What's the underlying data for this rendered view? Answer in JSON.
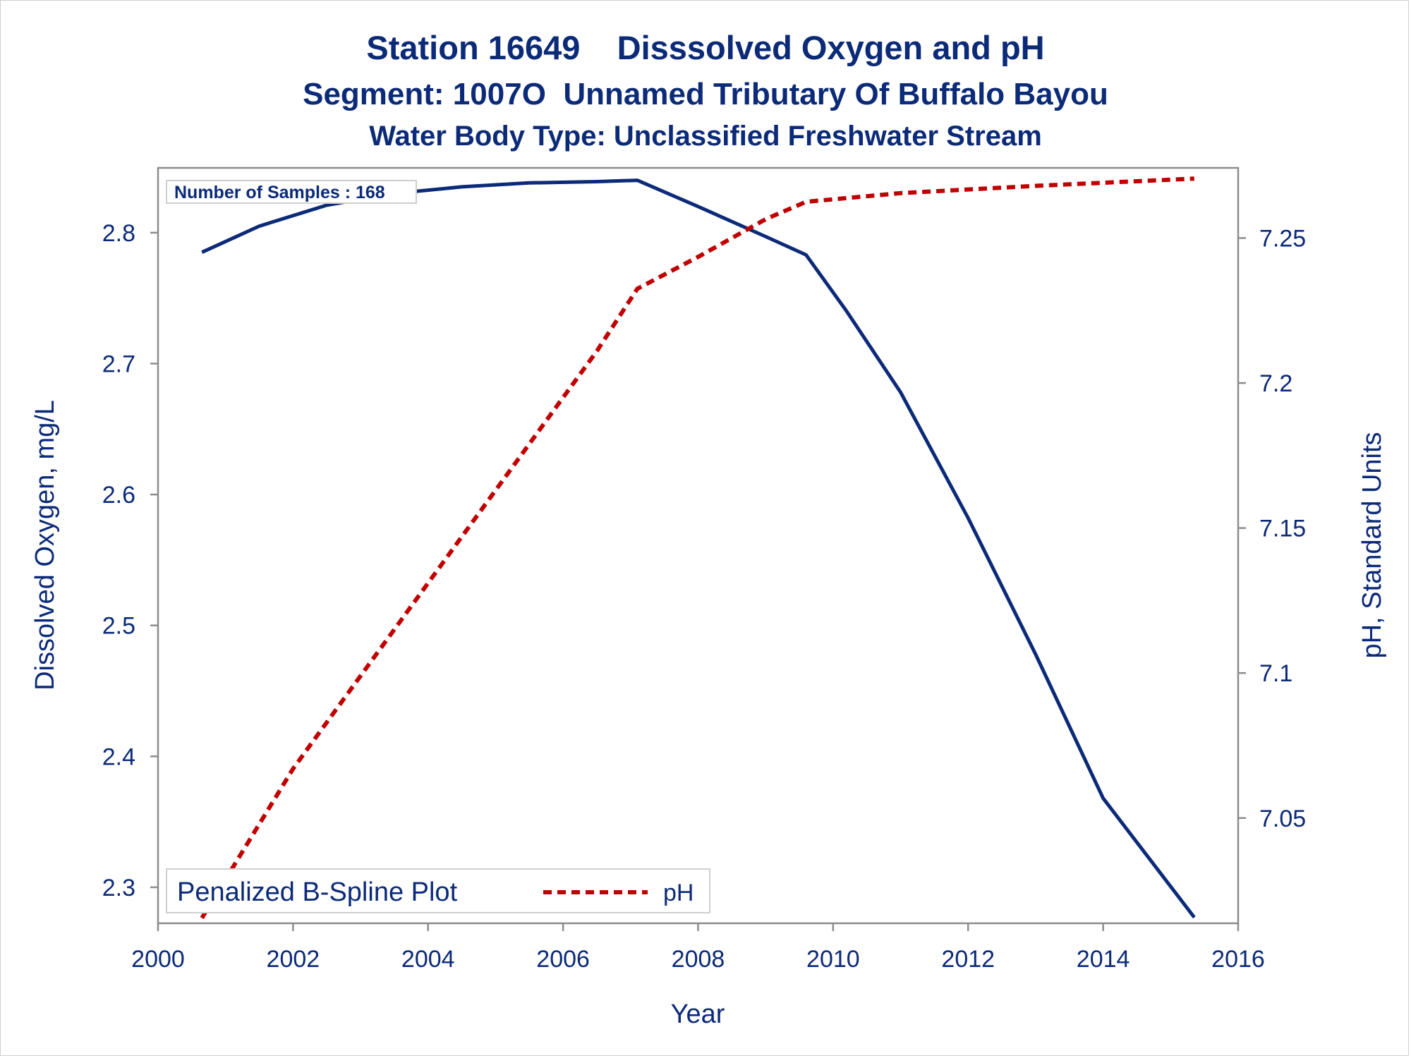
{
  "colors": {
    "text": "#0b2a78",
    "oxygen_line": "#0b2a78",
    "ph_line": "#c00000",
    "axis": "#8c8c8c"
  },
  "chart_data": {
    "type": "line",
    "title": "Station 16649    Disssolved Oxygen and pH",
    "subtitle": "Segment: 1007O  Unnamed Tributary Of Buffalo Bayou",
    "subtitle2": "Water Body Type: Unclassified Freshwater Stream",
    "xlabel": "Year",
    "ylabel": "Dissolved Oxygen, mg/L",
    "y2label": "pH, Standard Units",
    "xlim": [
      2000,
      2016
    ],
    "ylim": [
      2.2725,
      2.8495
    ],
    "y2lim": [
      7.0137,
      7.2742
    ],
    "x_ticks": [
      2000,
      2002,
      2004,
      2006,
      2008,
      2010,
      2012,
      2014,
      2016
    ],
    "y_ticks": [
      2.3,
      2.4,
      2.5,
      2.6,
      2.7,
      2.8
    ],
    "y2_ticks": [
      7.05,
      7.1,
      7.15,
      7.2,
      7.25
    ],
    "x_tick_labels": [
      "2000",
      "2002",
      "2004",
      "2006",
      "2008",
      "2010",
      "2012",
      "2014",
      "2016"
    ],
    "y_tick_labels": [
      "2.3",
      "2.4",
      "2.5",
      "2.6",
      "2.7",
      "2.8"
    ],
    "y2_tick_labels": [
      "7.05",
      "7.1",
      "7.15",
      "7.2",
      "7.25"
    ],
    "annotation": "Number of Samples : 168",
    "legend": {
      "placement": "bottom-left",
      "title": "Penalized B-Spline Plot",
      "entries": [
        "pH"
      ]
    },
    "grid": false,
    "series": [
      {
        "axis": "left",
        "style": "solid",
        "x": [
          2000.65,
          2001.5,
          2002.5,
          2003.5,
          2004.5,
          2005.5,
          2006.5,
          2007.1,
          2008.0,
          2009.0,
          2009.6,
          2010.2,
          2011.0,
          2012.0,
          2013.0,
          2014.0,
          2015.35
        ],
        "values": [
          2.785,
          2.805,
          2.821,
          2.83,
          2.835,
          2.838,
          2.839,
          2.84,
          2.82,
          2.797,
          2.783,
          2.74,
          2.678,
          2.582,
          2.478,
          2.368,
          2.277
        ]
      },
      {
        "name": "pH",
        "axis": "right",
        "style": "dashed",
        "x": [
          2000.65,
          2002.0,
          2003.5,
          2005.0,
          2006.5,
          2007.1,
          2008.0,
          2009.0,
          2009.6,
          2011.0,
          2013.0,
          2015.35
        ],
        "values": [
          7.0155,
          7.067,
          7.115,
          7.163,
          7.211,
          7.2325,
          7.2435,
          7.2565,
          7.2625,
          7.2655,
          7.268,
          7.2705
        ]
      }
    ]
  }
}
